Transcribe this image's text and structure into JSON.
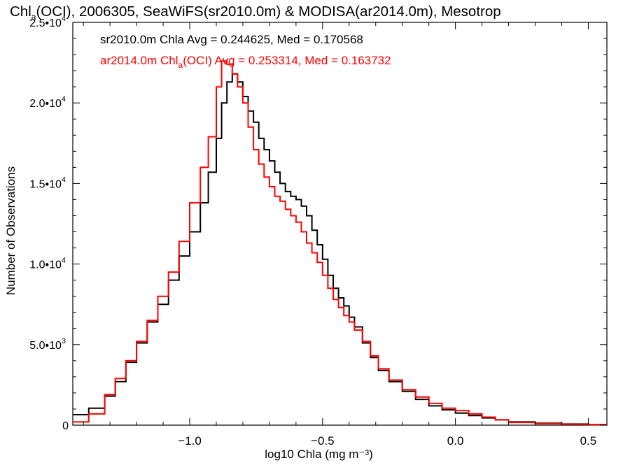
{
  "title": {
    "prefix": "Chl",
    "subscript": "a",
    "rest": "(OCI), 2006305, SeaWiFS(sr2010.0m) & MODISA(ar2014.0m), Mesotrop"
  },
  "xlabel": "log10 Chla (mg m⁻³)",
  "ylabel": "Number of Observations",
  "x_ticks": [
    {
      "value": -1.0,
      "label": "−1.0"
    },
    {
      "value": -0.5,
      "label": "−0.5"
    },
    {
      "value": 0.0,
      "label": "0.0"
    },
    {
      "value": 0.5,
      "label": "0.5"
    }
  ],
  "y_ticks": [
    {
      "value": 0,
      "label": "0"
    },
    {
      "value": 5000,
      "label": "5.0•10",
      "exp": "3"
    },
    {
      "value": 10000,
      "label": "1.0•10",
      "exp": "4"
    },
    {
      "value": 15000,
      "label": "1.5•10",
      "exp": "4"
    },
    {
      "value": 20000,
      "label": "2.0•10",
      "exp": "4"
    },
    {
      "value": 25000,
      "label": "2.5•10",
      "exp": "4"
    }
  ],
  "annotations": [
    {
      "text": "sr2010.0m Chla Avg = 0.244625, Med = 0.170568",
      "color": "#000000"
    },
    {
      "prefix": "ar2014.0m Chl",
      "subscript": "a",
      "text": "(OCI) Avg = 0.253314, Med = 0.163732",
      "color": "#ff0000"
    }
  ],
  "colors": {
    "series_1": "#000000",
    "series_2": "#ff0000"
  },
  "chart_data": {
    "type": "line",
    "step": true,
    "xlim": [
      -1.44,
      0.57
    ],
    "ylim": [
      0,
      25000
    ],
    "grid": false,
    "series": [
      {
        "color": "#000000",
        "x": [
          -1.44,
          -1.38,
          -1.32,
          -1.28,
          -1.24,
          -1.2,
          -1.16,
          -1.12,
          -1.08,
          -1.04,
          -1.0,
          -0.96,
          -0.93,
          -0.9,
          -0.88,
          -0.86,
          -0.84,
          -0.82,
          -0.8,
          -0.78,
          -0.76,
          -0.74,
          -0.72,
          -0.7,
          -0.68,
          -0.66,
          -0.64,
          -0.62,
          -0.6,
          -0.58,
          -0.56,
          -0.54,
          -0.52,
          -0.5,
          -0.48,
          -0.46,
          -0.44,
          -0.42,
          -0.4,
          -0.38,
          -0.35,
          -0.32,
          -0.29,
          -0.25,
          -0.2,
          -0.15,
          -0.1,
          -0.05,
          0.0,
          0.05,
          0.1,
          0.15,
          0.2,
          0.3,
          0.4,
          0.5,
          0.57
        ],
        "y": [
          650,
          1050,
          1800,
          2700,
          3900,
          5100,
          6400,
          7500,
          9000,
          10500,
          12000,
          13800,
          15700,
          17800,
          20000,
          21300,
          21800,
          21300,
          20400,
          19500,
          18800,
          17800,
          17100,
          16400,
          15700,
          15000,
          14500,
          14200,
          14000,
          13600,
          13000,
          12100,
          11200,
          10300,
          9300,
          8500,
          7900,
          7400,
          6700,
          6100,
          5100,
          4200,
          3400,
          2700,
          2100,
          1600,
          1200,
          950,
          750,
          600,
          450,
          330,
          200,
          120,
          70,
          30,
          20
        ]
      },
      {
        "color": "#ff0000",
        "x": [
          -1.44,
          -1.38,
          -1.32,
          -1.28,
          -1.24,
          -1.2,
          -1.16,
          -1.12,
          -1.08,
          -1.04,
          -1.0,
          -0.96,
          -0.93,
          -0.9,
          -0.88,
          -0.86,
          -0.84,
          -0.82,
          -0.8,
          -0.78,
          -0.76,
          -0.74,
          -0.72,
          -0.7,
          -0.68,
          -0.66,
          -0.64,
          -0.62,
          -0.6,
          -0.58,
          -0.56,
          -0.54,
          -0.52,
          -0.5,
          -0.48,
          -0.46,
          -0.44,
          -0.42,
          -0.4,
          -0.38,
          -0.35,
          -0.32,
          -0.29,
          -0.25,
          -0.2,
          -0.15,
          -0.1,
          -0.05,
          0.0,
          0.05,
          0.1,
          0.15,
          0.2,
          0.3,
          0.4,
          0.5,
          0.57
        ],
        "y": [
          200,
          700,
          1900,
          2900,
          4000,
          5200,
          6500,
          8000,
          9500,
          11400,
          13800,
          16000,
          17900,
          21000,
          22600,
          22400,
          21800,
          21000,
          20000,
          18500,
          17100,
          16200,
          15400,
          14800,
          14200,
          13900,
          13400,
          13000,
          12600,
          12000,
          11300,
          10700,
          10100,
          9300,
          8500,
          7800,
          7300,
          6800,
          6400,
          5900,
          5200,
          4300,
          3500,
          2800,
          2200,
          1750,
          1350,
          1050,
          900,
          700,
          500,
          330,
          170,
          90,
          50,
          25,
          15
        ]
      }
    ]
  }
}
